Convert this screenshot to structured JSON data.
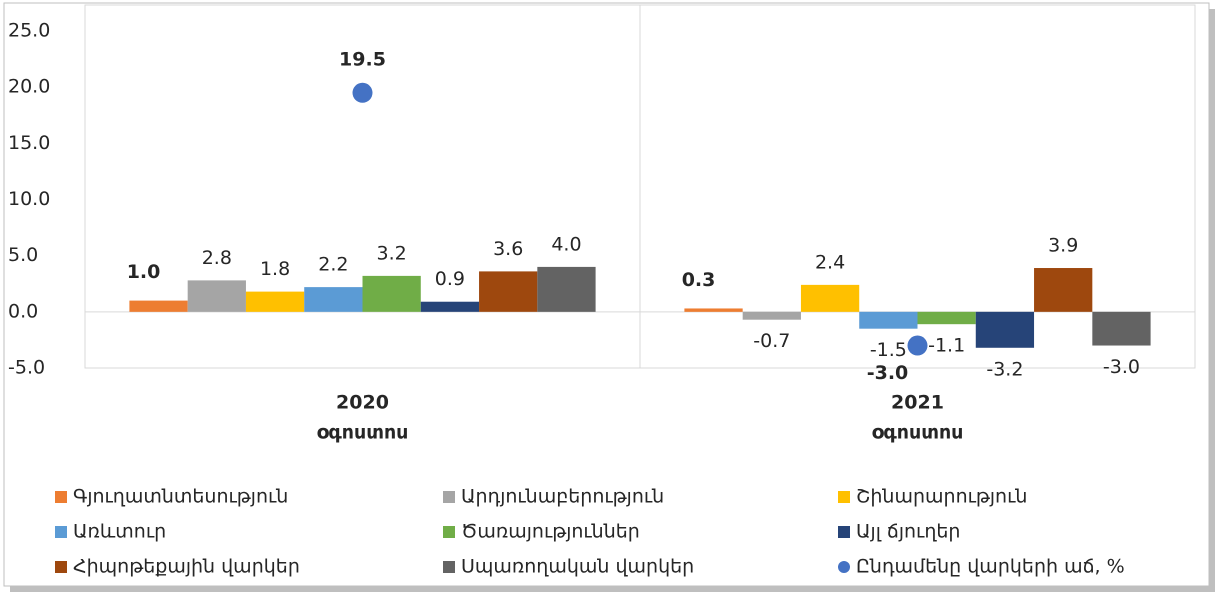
{
  "chart_data": {
    "type": "bar",
    "categories": [
      [
        "2020",
        "օգոստոս"
      ],
      [
        "2021",
        "օգոստոս"
      ]
    ],
    "ylim": [
      -5,
      25
    ],
    "yticks": [
      {
        "value": -5,
        "label": "-5.0"
      },
      {
        "value": 0,
        "label": "0.0"
      },
      {
        "value": 5,
        "label": "5.0"
      },
      {
        "value": 10,
        "label": "10.0"
      },
      {
        "value": 15,
        "label": "15.0"
      },
      {
        "value": 20,
        "label": "20.0"
      },
      {
        "value": 25,
        "label": "25.0"
      }
    ],
    "grid": false,
    "series": [
      {
        "name": "Գյուղատնտեսություն",
        "color": "#ED7D31",
        "values": [
          1.0,
          0.3
        ],
        "value_labels": [
          "1.0",
          "0.3"
        ]
      },
      {
        "name": "Արդյունաբերություն",
        "color": "#A5A5A5",
        "values": [
          2.8,
          -0.7
        ],
        "value_labels": [
          "2.8",
          "-0.7"
        ]
      },
      {
        "name": "Շինարարություն",
        "color": "#FFC000",
        "values": [
          1.8,
          2.4
        ],
        "value_labels": [
          "1.8",
          "2.4"
        ]
      },
      {
        "name": "Առևտուր",
        "color": "#5B9BD5",
        "values": [
          2.2,
          -1.5
        ],
        "value_labels": [
          "2.2",
          "-1.5"
        ]
      },
      {
        "name": "Ծառայություններ",
        "color": "#70AD47",
        "values": [
          3.2,
          -1.1
        ],
        "value_labels": [
          "3.2",
          "-1.1"
        ]
      },
      {
        "name": "Այլ ճյուղեր",
        "color": "#264478",
        "values": [
          0.9,
          -3.2
        ],
        "value_labels": [
          "0.9",
          "-3.2"
        ]
      },
      {
        "name": "Հիպոթեքային վարկեր",
        "color": "#9E480E",
        "values": [
          3.6,
          3.9
        ],
        "value_labels": [
          "3.6",
          "3.9"
        ]
      },
      {
        "name": "Սպառողական վարկեր",
        "color": "#636363",
        "values": [
          4.0,
          -3.0
        ],
        "value_labels": [
          "4.0",
          "-3.0"
        ]
      },
      {
        "name": "Ընդամենը վարկերի աճ, %",
        "color": "#4472C4",
        "type": "scatter",
        "values": [
          19.5,
          -3.0
        ],
        "value_labels": [
          "19.5",
          "-3.0"
        ]
      }
    ]
  }
}
